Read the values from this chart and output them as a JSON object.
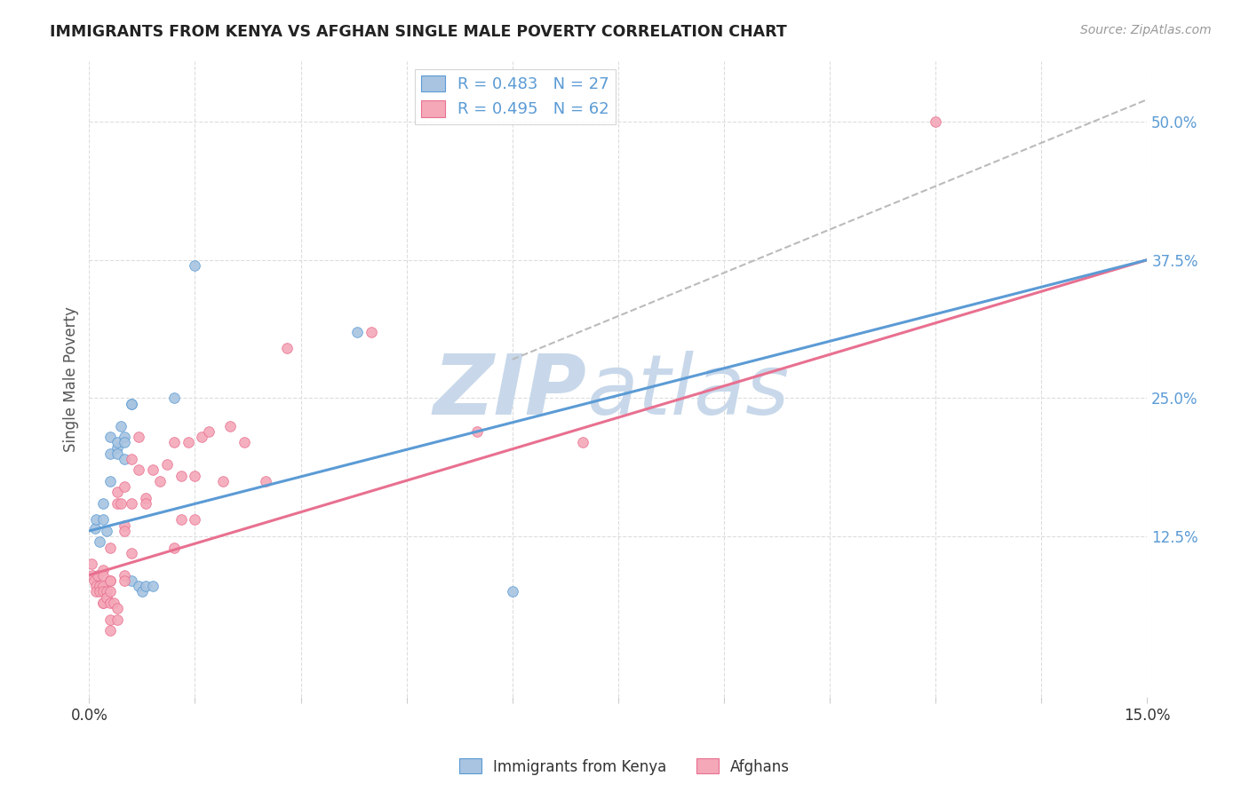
{
  "title": "IMMIGRANTS FROM KENYA VS AFGHAN SINGLE MALE POVERTY CORRELATION CHART",
  "source": "Source: ZipAtlas.com",
  "ylabel": "Single Male Poverty",
  "yticks_labels": [
    "12.5%",
    "25.0%",
    "37.5%",
    "50.0%"
  ],
  "ytick_vals": [
    0.125,
    0.25,
    0.375,
    0.5
  ],
  "xlim": [
    0.0,
    0.15
  ],
  "ylim": [
    -0.02,
    0.555
  ],
  "legend_r1": "R = 0.483",
  "legend_n1": "N = 27",
  "legend_r2": "R = 0.495",
  "legend_n2": "N = 62",
  "color_kenya": "#a8c4e0",
  "color_afghan": "#f4a8b8",
  "trendline_kenya_color": "#5b9bd5",
  "trendline_afghan_color": "#e87090",
  "trendline_dashed_color": "#bbbbbb",
  "kenya_scatter": [
    [
      0.0008,
      0.132
    ],
    [
      0.001,
      0.14
    ],
    [
      0.0015,
      0.12
    ],
    [
      0.002,
      0.155
    ],
    [
      0.002,
      0.14
    ],
    [
      0.0025,
      0.13
    ],
    [
      0.003,
      0.175
    ],
    [
      0.003,
      0.2
    ],
    [
      0.003,
      0.215
    ],
    [
      0.004,
      0.205
    ],
    [
      0.004,
      0.21
    ],
    [
      0.004,
      0.2
    ],
    [
      0.0045,
      0.225
    ],
    [
      0.005,
      0.195
    ],
    [
      0.005,
      0.215
    ],
    [
      0.005,
      0.21
    ],
    [
      0.006,
      0.245
    ],
    [
      0.006,
      0.245
    ],
    [
      0.006,
      0.085
    ],
    [
      0.007,
      0.08
    ],
    [
      0.0075,
      0.075
    ],
    [
      0.008,
      0.08
    ],
    [
      0.009,
      0.08
    ],
    [
      0.012,
      0.25
    ],
    [
      0.015,
      0.37
    ],
    [
      0.038,
      0.31
    ],
    [
      0.06,
      0.075
    ]
  ],
  "afghan_scatter": [
    [
      0.0003,
      0.1
    ],
    [
      0.0005,
      0.09
    ],
    [
      0.0007,
      0.085
    ],
    [
      0.001,
      0.08
    ],
    [
      0.001,
      0.075
    ],
    [
      0.0012,
      0.09
    ],
    [
      0.0015,
      0.08
    ],
    [
      0.0015,
      0.075
    ],
    [
      0.002,
      0.065
    ],
    [
      0.002,
      0.065
    ],
    [
      0.002,
      0.095
    ],
    [
      0.002,
      0.09
    ],
    [
      0.002,
      0.08
    ],
    [
      0.002,
      0.075
    ],
    [
      0.0025,
      0.075
    ],
    [
      0.0025,
      0.07
    ],
    [
      0.003,
      0.065
    ],
    [
      0.003,
      0.05
    ],
    [
      0.003,
      0.04
    ],
    [
      0.003,
      0.115
    ],
    [
      0.003,
      0.085
    ],
    [
      0.003,
      0.085
    ],
    [
      0.003,
      0.075
    ],
    [
      0.0035,
      0.065
    ],
    [
      0.004,
      0.06
    ],
    [
      0.004,
      0.05
    ],
    [
      0.004,
      0.165
    ],
    [
      0.004,
      0.155
    ],
    [
      0.0045,
      0.155
    ],
    [
      0.005,
      0.135
    ],
    [
      0.005,
      0.13
    ],
    [
      0.005,
      0.09
    ],
    [
      0.005,
      0.085
    ],
    [
      0.005,
      0.17
    ],
    [
      0.006,
      0.155
    ],
    [
      0.006,
      0.11
    ],
    [
      0.006,
      0.195
    ],
    [
      0.007,
      0.185
    ],
    [
      0.007,
      0.215
    ],
    [
      0.008,
      0.16
    ],
    [
      0.008,
      0.155
    ],
    [
      0.009,
      0.185
    ],
    [
      0.01,
      0.175
    ],
    [
      0.011,
      0.19
    ],
    [
      0.012,
      0.21
    ],
    [
      0.012,
      0.115
    ],
    [
      0.013,
      0.18
    ],
    [
      0.013,
      0.14
    ],
    [
      0.014,
      0.21
    ],
    [
      0.015,
      0.18
    ],
    [
      0.015,
      0.14
    ],
    [
      0.016,
      0.215
    ],
    [
      0.017,
      0.22
    ],
    [
      0.019,
      0.175
    ],
    [
      0.02,
      0.225
    ],
    [
      0.022,
      0.21
    ],
    [
      0.025,
      0.175
    ],
    [
      0.028,
      0.295
    ],
    [
      0.04,
      0.31
    ],
    [
      0.055,
      0.22
    ],
    [
      0.07,
      0.21
    ],
    [
      0.12,
      0.5
    ]
  ],
  "watermark_line1": "ZIP",
  "watermark_line2": "atlas",
  "watermark_color": "#c8d8ea",
  "background_color": "#ffffff",
  "grid_color": "#dddddd",
  "kenya_trend_x": [
    0.0,
    0.15
  ],
  "kenya_trend_y": [
    0.13,
    0.375
  ],
  "afghan_trend_x": [
    0.0,
    0.15
  ],
  "afghan_trend_y": [
    0.09,
    0.375
  ],
  "dashed_trend_x": [
    0.06,
    0.15
  ],
  "dashed_trend_y": [
    0.285,
    0.52
  ]
}
